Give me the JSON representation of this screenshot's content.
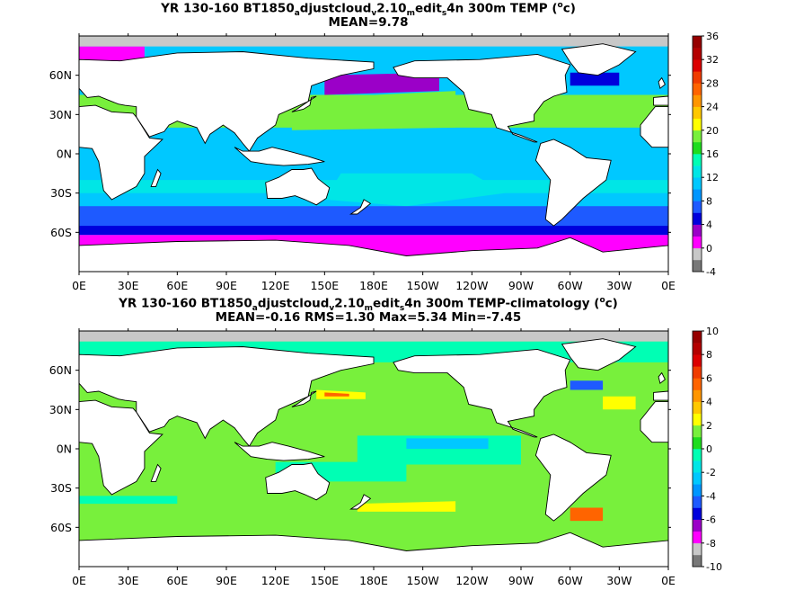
{
  "chart_data": [
    {
      "type": "heatmap",
      "title_parts": [
        {
          "t": "YR 130-160 BT1850"
        },
        {
          "t": "a",
          "sub": true
        },
        {
          "t": "djustcloud"
        },
        {
          "t": "v",
          "sub": true
        },
        {
          "t": "2.10"
        },
        {
          "t": "m",
          "sub": true
        },
        {
          "t": "edit"
        },
        {
          "t": "s",
          "sub": true
        },
        {
          "t": "4n 300m TEMP ("
        },
        {
          "t": "o",
          "sup": true
        },
        {
          "t": "c)"
        }
      ],
      "subtitle": "MEAN=9.78",
      "x_ticks": [
        "0E",
        "30E",
        "60E",
        "90E",
        "120E",
        "150E",
        "180E",
        "150W",
        "120W",
        "90W",
        "60W",
        "30W",
        "0E"
      ],
      "y_ticks": [
        "60N",
        "30N",
        "0N",
        "30S",
        "60S"
      ],
      "colorbar_ticks": [
        "36",
        "32",
        "28",
        "24",
        "20",
        "16",
        "12",
        "8",
        "4",
        "0",
        "-4"
      ],
      "colorbar_colors": [
        "#787878",
        "#c8c8c8",
        "#ff00ff",
        "#9b00c8",
        "#0000dc",
        "#1e5aff",
        "#0096ff",
        "#00c8ff",
        "#00e6e6",
        "#00ffb4",
        "#1edc1e",
        "#78f03c",
        "#ffff00",
        "#ffc800",
        "#ff9600",
        "#ff6400",
        "#f03c00",
        "#dc0000",
        "#b40000",
        "#960000"
      ],
      "stats": {
        "mean": 9.78
      },
      "field_colors": {
        "ocean_warm": "#00c8ff",
        "ocean_subtropic": "#78f03c",
        "ocean_south": "#1e5aff",
        "southern_ocean": "#ff00ff",
        "subpolar": "#9b00c8",
        "ice": "#c8c8c8",
        "land": "#ffffff"
      }
    },
    {
      "type": "heatmap",
      "title_parts": [
        {
          "t": "YR 130-160 BT1850"
        },
        {
          "t": "a",
          "sub": true
        },
        {
          "t": "djustcloud"
        },
        {
          "t": "v",
          "sub": true
        },
        {
          "t": "2.10"
        },
        {
          "t": "m",
          "sub": true
        },
        {
          "t": "edit"
        },
        {
          "t": "s",
          "sub": true
        },
        {
          "t": "4n 300m TEMP-climatology ("
        },
        {
          "t": "o",
          "sup": true
        },
        {
          "t": "c)"
        }
      ],
      "subtitle": "MEAN=-0.16   RMS=1.30   Max=5.34   Min=-7.45",
      "x_ticks": [
        "0E",
        "30E",
        "60E",
        "90E",
        "120E",
        "150E",
        "180E",
        "150W",
        "120W",
        "90W",
        "60W",
        "30W",
        "0E"
      ],
      "y_ticks": [
        "60N",
        "30N",
        "0N",
        "30S",
        "60S"
      ],
      "colorbar_ticks": [
        "10",
        "8",
        "6",
        "4",
        "2",
        "0",
        "-2",
        "-4",
        "-6",
        "-8",
        "-10"
      ],
      "colorbar_colors": [
        "#787878",
        "#c8c8c8",
        "#ff00ff",
        "#9b00c8",
        "#0000dc",
        "#1e5aff",
        "#0096ff",
        "#00c8ff",
        "#00e6e6",
        "#00ffb4",
        "#1edc1e",
        "#78f03c",
        "#ffff00",
        "#ffc800",
        "#ff9600",
        "#ff6400",
        "#f03c00",
        "#dc0000",
        "#b40000",
        "#960000"
      ],
      "stats": {
        "mean": -0.16,
        "rms": 1.3,
        "max": 5.34,
        "min": -7.45
      },
      "field_colors": {
        "ocean_base": "#78f03c",
        "ocean_cool": "#00ffb4",
        "ocean_cold": "#00c8ff",
        "anomaly_warm": "#ffff00",
        "anomaly_hot": "#ff6400",
        "anomaly_cold": "#1e5aff",
        "ice": "#c8c8c8",
        "land": "#ffffff"
      }
    }
  ]
}
